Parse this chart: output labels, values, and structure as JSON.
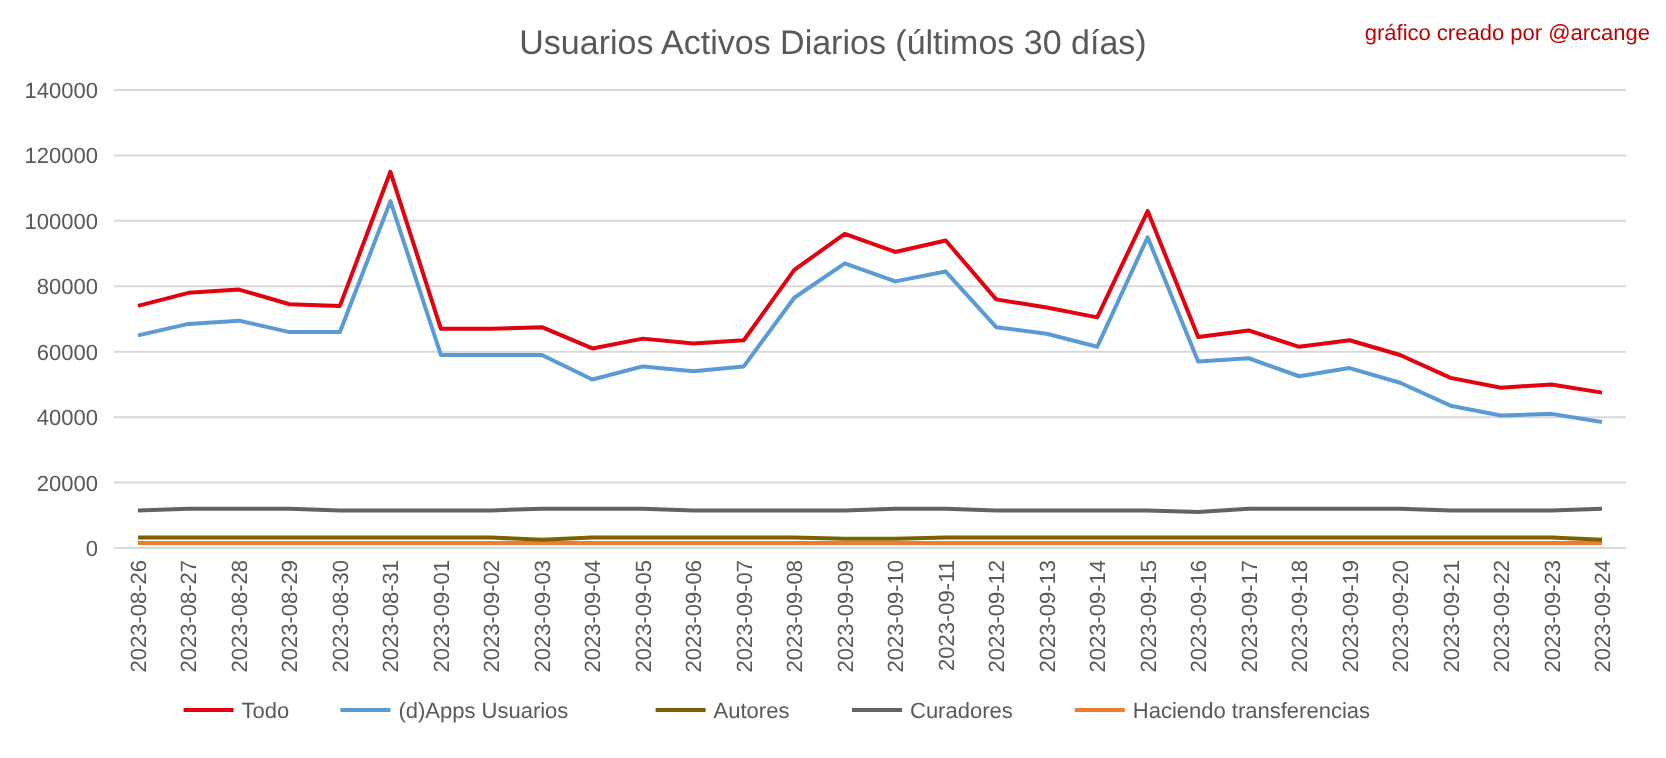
{
  "chart_data": {
    "type": "line",
    "title": "Usuarios Activos Diarios (últimos 30 días)",
    "annotations": [
      "gráfico creado por @arcange"
    ],
    "categories": [
      "2023-08-26",
      "2023-08-27",
      "2023-08-28",
      "2023-08-29",
      "2023-08-30",
      "2023-08-31",
      "2023-09-01",
      "2023-09-02",
      "2023-09-03",
      "2023-09-04",
      "2023-09-05",
      "2023-09-06",
      "2023-09-07",
      "2023-09-08",
      "2023-09-09",
      "2023-09-10",
      "2023-09-11",
      "2023-09-12",
      "2023-09-13",
      "2023-09-14",
      "2023-09-15",
      "2023-09-16",
      "2023-09-17",
      "2023-09-18",
      "2023-09-19",
      "2023-09-20",
      "2023-09-21",
      "2023-09-22",
      "2023-09-23",
      "2023-09-24"
    ],
    "series": [
      {
        "name": "Todo",
        "color": "#e3000f",
        "values": [
          74000,
          78000,
          79000,
          74500,
          74000,
          115000,
          67000,
          67000,
          67500,
          61000,
          64000,
          62500,
          63500,
          85000,
          96000,
          90500,
          94000,
          76000,
          73500,
          70500,
          103000,
          64500,
          66500,
          61500,
          63500,
          59000,
          52000,
          49000,
          50000,
          47500
        ]
      },
      {
        "name": "(d)Apps Usuarios",
        "color": "#5b9bd5",
        "values": [
          65000,
          68500,
          69500,
          66000,
          66000,
          106000,
          59000,
          59000,
          59000,
          51500,
          55500,
          54000,
          55500,
          76500,
          87000,
          81500,
          84500,
          67500,
          65500,
          61500,
          95000,
          57000,
          58000,
          52500,
          55000,
          50500,
          43500,
          40500,
          41000,
          38500
        ]
      },
      {
        "name": "Autores",
        "color": "#7f6000",
        "values": [
          3200,
          3200,
          3200,
          3200,
          3200,
          3200,
          3200,
          3200,
          2500,
          3200,
          3200,
          3200,
          3200,
          3200,
          2800,
          2800,
          3200,
          3200,
          3200,
          3200,
          3200,
          3200,
          3200,
          3200,
          3200,
          3200,
          3200,
          3200,
          3200,
          2500
        ]
      },
      {
        "name": "Curadores",
        "color": "#636363",
        "values": [
          11500,
          12000,
          12000,
          12000,
          11500,
          11500,
          11500,
          11500,
          12000,
          12000,
          12000,
          11500,
          11500,
          11500,
          11500,
          12000,
          12000,
          11500,
          11500,
          11500,
          11500,
          11000,
          12000,
          12000,
          12000,
          12000,
          11500,
          11500,
          11500,
          12000
        ]
      },
      {
        "name": "Haciendo transferencias",
        "color": "#ed7d31",
        "values": [
          1500,
          1500,
          1500,
          1500,
          1500,
          1500,
          1500,
          1500,
          1500,
          1500,
          1500,
          1500,
          1500,
          1500,
          1500,
          1500,
          1500,
          1500,
          1500,
          1500,
          1500,
          1500,
          1500,
          1500,
          1500,
          1500,
          1500,
          1500,
          1500,
          1500
        ]
      }
    ],
    "ylim": [
      0,
      140000
    ],
    "yticks": [
      0,
      20000,
      40000,
      60000,
      80000,
      100000,
      120000,
      140000
    ],
    "grid": "y",
    "legend": "bottom",
    "marker": "none",
    "line_style": "solid"
  }
}
